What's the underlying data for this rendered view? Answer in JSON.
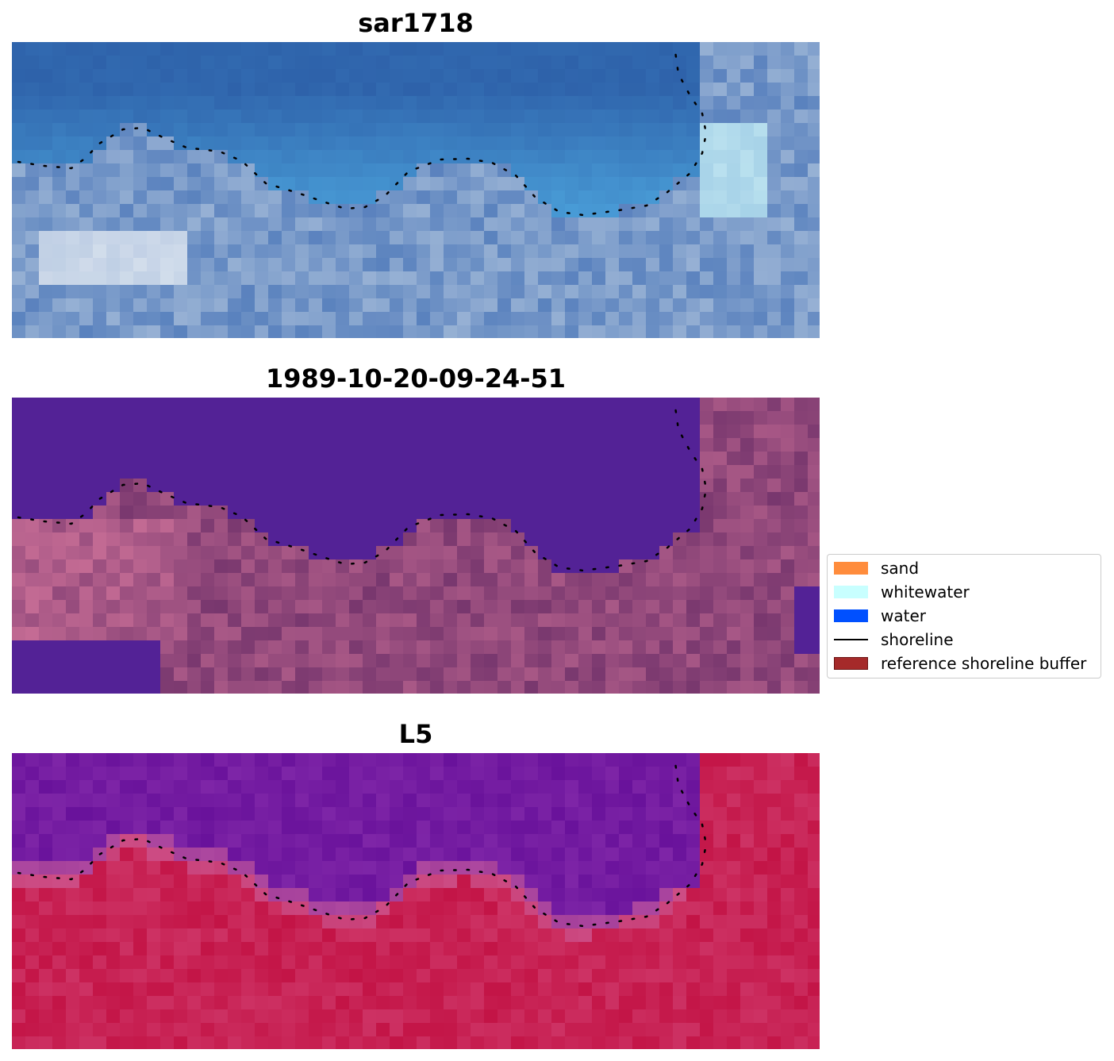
{
  "panels": [
    {
      "title": "sar1718",
      "kind": "rgb"
    },
    {
      "title": "1989-10-20-09-24-51",
      "kind": "classified"
    },
    {
      "title": "L5",
      "kind": "index"
    }
  ],
  "legend": {
    "items": [
      {
        "label": "sand",
        "color": "#ff8c3c",
        "type": "patch"
      },
      {
        "label": "whitewater",
        "color": "#c8ffff",
        "type": "patch"
      },
      {
        "label": "water",
        "color": "#0050ff",
        "type": "patch"
      },
      {
        "label": "shoreline",
        "color": "#000000",
        "type": "line"
      },
      {
        "label": "reference shoreline buffer",
        "color": "#a52a2a",
        "type": "patch"
      }
    ]
  }
}
